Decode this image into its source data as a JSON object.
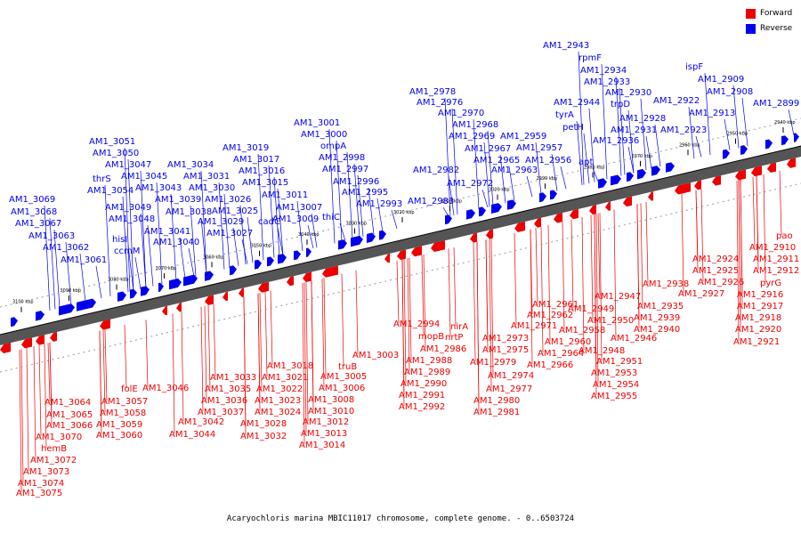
{
  "caption": "Acaryochloris marina MBIC11017 chromosome, complete genome. - 0..6503724",
  "legend": [
    {
      "label": "Forward",
      "color": "#ee0000"
    },
    {
      "label": "Reverse",
      "color": "#0000ee"
    }
  ],
  "colors": {
    "forward": "#ee0000",
    "reverse": "#0000ee",
    "axis": "#000000",
    "forward_leader": "#ee0000",
    "reverse_leader": "#0000ee"
  },
  "scale_ticks": [
    "3100 kbp",
    "3090 kbp",
    "3080 kbp",
    "3070 kbp",
    "3060 kbp",
    "3050 kbp",
    "3040 kbp",
    "3030 kbp",
    "3020 kbp",
    "3010 kbp",
    "3000 kbp",
    "2990 kbp",
    "2980 kbp",
    "2970 kbp",
    "2960 kbp",
    "2950 kbp",
    "2940 kbp"
  ],
  "reverse_labels": [
    "AM1_3069",
    "AM1_3068",
    "AM1_3067",
    "AM1_3063",
    "AM1_3062",
    "AM1_3061",
    "AM1_3051",
    "AM1_3050",
    "AM1_3047",
    "thrS",
    "AM1_3054",
    "AM1_3045",
    "AM1_3043",
    "AM1_3049",
    "hisI",
    "AM1_3048",
    "ccmM",
    "AM1_3034",
    "AM1_3039",
    "AM1_3031",
    "AM1_3030",
    "AM1_3038",
    "AM1_3041",
    "AM1_3040",
    "AM1_3019",
    "AM1_3017",
    "AM1_3016",
    "AM1_3015",
    "AM1_3026",
    "AM1_3025",
    "AM1_3029",
    "AM1_3027",
    "cadC",
    "AM1_3001",
    "AM1_3000",
    "ompA",
    "AM1_2998",
    "AM1_2997",
    "AM1_3011",
    "AM1_3007",
    "AM1_3009",
    "AM1_2996",
    "AM1_2995",
    "thiC",
    "AM1_2993",
    "AM1_2978",
    "AM1_2976",
    "AM1_2970",
    "AM1_2968",
    "AM1_2969",
    "AM1_2967",
    "AM1_2982",
    "AM1_2965",
    "AM1_2972",
    "AM1_2983",
    "AM1_2959",
    "AM1_2957",
    "AM1_2956",
    "AM1_2963",
    "AM1_2943",
    "rpmF",
    "AM1_2934",
    "AM1_2933",
    "AM1_2930",
    "AM1_2944",
    "trpD",
    "tyrA",
    "AM1_2928",
    "petH",
    "AM1_2931",
    "AM1_2936",
    "apt",
    "ispF",
    "AM1_2909",
    "AM1_2908",
    "AM1_2922",
    "AM1_2913",
    "AM1_2923",
    "AM1_2899"
  ],
  "forward_labels": [
    "AM1_3064",
    "AM1_3065",
    "AM1_3066",
    "AM1_3070",
    "hemB",
    "AM1_3072",
    "AM1_3073",
    "AM1_3074",
    "AM1_3075",
    "folE",
    "AM1_3057",
    "AM1_3058",
    "AM1_3059",
    "AM1_3060",
    "AM1_3046",
    "AM1_3042",
    "AM1_3044",
    "AM1_3033",
    "AM1_3035",
    "AM1_3036",
    "AM1_3037",
    "AM1_3018",
    "AM1_3021",
    "AM1_3022",
    "AM1_3023",
    "AM1_3024",
    "AM1_3028",
    "AM1_3032",
    "AM1_3003",
    "truB",
    "AM1_3005",
    "AM1_3006",
    "AM1_3008",
    "AM1_3010",
    "AM1_3012",
    "AM1_3013",
    "AM1_3014",
    "AM1_2994",
    "mopB",
    "nirA",
    "nrtP",
    "AM1_2986",
    "AM1_2988",
    "AM1_2989",
    "AM1_2990",
    "AM1_2991",
    "AM1_2992",
    "AM1_2971",
    "AM1_2973",
    "AM1_2975",
    "AM1_2979",
    "AM1_2974",
    "AM1_2977",
    "AM1_2980",
    "AM1_2981",
    "AM1_2961",
    "AM1_2962",
    "AM1_2960",
    "AM1_2964",
    "AM1_2966",
    "AM1_2958",
    "AM1_2949",
    "AM1_2950",
    "AM1_2946",
    "AM1_2948",
    "AM1_2951",
    "AM1_2953",
    "AM1_2954",
    "AM1_2955",
    "AM1_2947",
    "AM1_2938",
    "AM1_2935",
    "AM1_2939",
    "AM1_2940",
    "AM1_2924",
    "AM1_2925",
    "AM1_2926",
    "AM1_2927",
    "pao",
    "AM1_2910",
    "AM1_2911",
    "AM1_2912",
    "pyrG",
    "AM1_2916",
    "AM1_2917",
    "AM1_2918",
    "AM1_2920",
    "AM1_2921"
  ]
}
